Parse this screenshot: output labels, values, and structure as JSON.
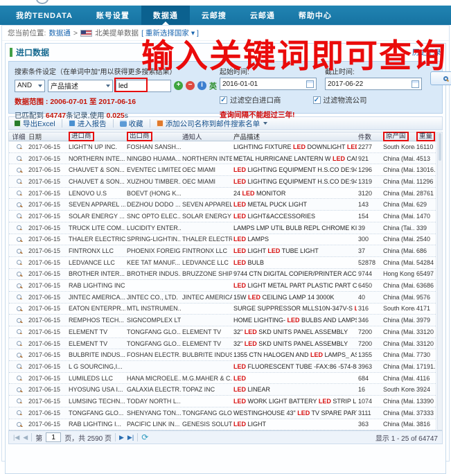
{
  "nav": {
    "tabs": [
      {
        "label": "我的TENDATA"
      },
      {
        "label": "账号设置"
      },
      {
        "label": "数据通"
      },
      {
        "label": "云邮搜"
      },
      {
        "label": "云邮通"
      },
      {
        "label": "帮助中心"
      }
    ],
    "active_index": 2
  },
  "breadcrumb": {
    "prefix": "您当前位置:",
    "link": "数据通",
    "sep": ">",
    "flag_icon": "us-flag",
    "title": "北美提单数据",
    "reselect": "[ 重新选择国家 ▾ ]"
  },
  "annotation": {
    "headline": "输入关键词即可查询"
  },
  "panel": {
    "title": "进口数据",
    "history_link": "历史记录"
  },
  "search": {
    "criteria_label": "搜索条件设定（在单词中加\"用以获得更多搜索结果）",
    "bool_op": "AND",
    "field_option": "产品描述",
    "keyword": "led",
    "lang_label": "英",
    "add_icon": "+",
    "remove_icon": "−",
    "info_icon": "i",
    "start_label": "起始时间:",
    "start_value": "2016-01-01",
    "end_label": "截止时间:",
    "end_value": "2017-06-22",
    "search_label": "搜索",
    "range_text": "数据范围 : 2006-07-01 至 2017-06-16",
    "matched_parts": [
      {
        "t": "已匹配到 ",
        "red": false
      },
      {
        "t": "64747",
        "red": true
      },
      {
        "t": "条记录,使用 ",
        "red": false
      },
      {
        "t": "0.025",
        "red": true
      },
      {
        "t": "s",
        "red": false
      }
    ],
    "filter1": "过滤空白进口商",
    "filter2": "过滤物流公司",
    "warn": "查询间隔不能超过三年!"
  },
  "toolbar": {
    "export_label": "导出Excel",
    "report_label": "进入报告",
    "favorite_label": "收藏",
    "addlist_label": "添加公司名称到邮件搜索名单"
  },
  "table": {
    "headers": [
      {
        "label": "详细",
        "boxed": false
      },
      {
        "label": "日期",
        "boxed": false
      },
      {
        "label": "进口商",
        "boxed": true
      },
      {
        "label": "出口商",
        "boxed": true
      },
      {
        "label": "通知人",
        "boxed": false
      },
      {
        "label": "产品描述",
        "boxed": false
      },
      {
        "label": "件数",
        "boxed": false
      },
      {
        "label": "原产国",
        "boxed": true
      },
      {
        "label": "重量",
        "boxed": true
      }
    ],
    "rows": [
      {
        "date": "2017-06-15",
        "importer": "LIGHT'N UP INC.",
        "exporter": "FOSHAN SANSH...",
        "notify": "",
        "desc": "LIGHTING FIXTURE LED DOWNLIGHT LED MULT...",
        "qty": "2277",
        "country": "South Korea",
        "weight": "16110"
      },
      {
        "date": "2017-06-15",
        "importer": "NORTHERN INTE...",
        "exporter": "NINGBO HUAMA...",
        "notify": "NORTHERN INTE...",
        "desc": "METAL HURRICANE LANTERN W LED CANDLE T...",
        "qty": "921",
        "country": "China (Mai...",
        "weight": "4513"
      },
      {
        "date": "2017-06-15",
        "importer": "CHAUVET & SON...",
        "exporter": "EVENTEC LIMITED",
        "notify": "OEC MIAMI",
        "desc": "LED LIGHTING EQUIPMENT H.S.CO DE:9405409...",
        "qty": "1296",
        "country": "China (Mai...",
        "weight": "13016..."
      },
      {
        "date": "2017-06-15",
        "importer": "CHAUVET & SON...",
        "exporter": "XUZHOU TIMBER...",
        "notify": "OEC MIAMI",
        "desc": "LED LIGHTING EQUIPMENT H.S.CO DE:9405409...",
        "qty": "1319",
        "country": "China (Mai...",
        "weight": "11296"
      },
      {
        "date": "2017-06-15",
        "importer": "LENOVO U.S",
        "exporter": "BOEVT (HONG K...",
        "notify": "",
        "desc": "24 LED MONITOR",
        "qty": "3120",
        "country": "China (Mai...",
        "weight": "28761"
      },
      {
        "date": "2017-06-15",
        "importer": "SEVEN APPAREL ...",
        "exporter": "DEZHOU DODO ...",
        "notify": "SEVEN APPAREL ...",
        "desc": "LED METAL PUCK LIGHT",
        "qty": "143",
        "country": "China (Mai...",
        "weight": "629"
      },
      {
        "date": "2017-06-15",
        "importer": "SOLAR ENERGY ...",
        "exporter": "SNC OPTO ELEC...",
        "notify": "SOLAR ENERGY ...",
        "desc": "LED LIGHT&ACCESSORIES",
        "qty": "154",
        "country": "China (Mai...",
        "weight": "1470"
      },
      {
        "date": "2017-06-15",
        "importer": "TRUCK LITE COM...",
        "exporter": "LUCIDITY ENTER...",
        "notify": "",
        "desc": "LAMPS LMP UTIL BULB REPL CHROME KIT LED A...",
        "qty": "39",
        "country": "China (Tai...",
        "weight": "339"
      },
      {
        "date": "2017-06-15",
        "importer": "THALER ELECTRIC",
        "exporter": "SPRING-LIGHTIN...",
        "notify": "THALER ELECTRIC",
        "desc": "LED LAMPS",
        "qty": "300",
        "country": "China (Mai...",
        "weight": "2540"
      },
      {
        "date": "2017-06-15",
        "importer": "FINTRONX LLC",
        "exporter": "PHOENIX FOREIG...",
        "notify": "FINTRONX LLC",
        "desc": "LED LIGHT LED TUBE LIGHT",
        "qty": "37",
        "country": "China (Mai...",
        "weight": "686"
      },
      {
        "date": "2017-06-15",
        "importer": "LEDVANCE LLC",
        "exporter": "KEE TAT MANUF...",
        "notify": "LEDVANCE LLC",
        "desc": "LED BULB",
        "qty": "52878",
        "country": "China (Mai...",
        "weight": "54284"
      },
      {
        "date": "2017-06-15",
        "importer": "BROTHER INTER...",
        "exporter": "BROTHER INDUS...",
        "notify": "BRUZZONE SHIP...",
        "desc": "9744 CTN DIGITAL COPIER/PRINTER ACC FOR L...",
        "qty": "9744",
        "country": "Hong Kong",
        "weight": "65497"
      },
      {
        "date": "2017-06-15",
        "importer": "RAB LIGHTING INC",
        "exporter": "",
        "notify": "",
        "desc": "LED LIGHT METAL PART PLASTIC PART CARTO...",
        "qty": "6450",
        "country": "China (Mai...",
        "weight": "63686"
      },
      {
        "date": "2017-06-15",
        "importer": "JINTEC AMERICA...",
        "exporter": "JINTEC CO., LTD.",
        "notify": "JINTEC AMERICA...",
        "desc": "15W LED CEILING LAMP 14 3000K",
        "qty": "40",
        "country": "China (Mai...",
        "weight": "9576"
      },
      {
        "date": "2017-06-15",
        "importer": "EATON ENTERPR...",
        "exporter": "MTL INSTRUMEN...",
        "notify": "",
        "desc": "SURGE SUPPRESSOR MLLS10N-347V-S LED LIGH...",
        "qty": "316",
        "country": "South Korea",
        "weight": "4171"
      },
      {
        "date": "2017-06-15",
        "importer": "REMPHOS TECH...",
        "exporter": "SIGNCOMPLEX LTD",
        "notify": "",
        "desc": "HOME LIGHTING- LED BULBS AND LAMPS HS CO...",
        "qty": "346",
        "country": "China (Mai...",
        "weight": "3979"
      },
      {
        "date": "2017-06-15",
        "importer": "ELEMENT TV",
        "exporter": "TONGFANG GLO...",
        "notify": "ELEMENT TV",
        "desc": "32\" LED SKD UNITS PANEL ASSEMBLY",
        "qty": "7200",
        "country": "China (Mai...",
        "weight": "33120"
      },
      {
        "date": "2017-06-15",
        "importer": "ELEMENT TV",
        "exporter": "TONGFANG GLO...",
        "notify": "ELEMENT TV",
        "desc": "32\" LED SKD UNITS PANEL ASSEMBLY",
        "qty": "7200",
        "country": "China (Mai...",
        "weight": "33120"
      },
      {
        "date": "2017-06-15",
        "importer": "BULBRITE INDUS...",
        "exporter": "FOSHAN ELECTR...",
        "notify": "BULBRITE INDUS...",
        "desc": "1355 CTN HALOGEN AND LED LAMPS_ AS PER P...",
        "qty": "1355",
        "country": "China (Mai...",
        "weight": "7730"
      },
      {
        "date": "2017-06-15",
        "importer": "L G SOURCING,I...",
        "exporter": "",
        "notify": "",
        "desc": "LED FLUORESCENT TUBE -FAX:86 -574-8884-56...",
        "qty": "3963",
        "country": "China (Mai...",
        "weight": "17191..."
      },
      {
        "date": "2017-06-15",
        "importer": "LUMILEDS LLC",
        "exporter": "HANA MICROELE...",
        "notify": "M.G.MAHER & C...",
        "desc": "LED",
        "qty": "684",
        "country": "China (Mai...",
        "weight": "4116"
      },
      {
        "date": "2017-06-15",
        "importer": "HYOSUNG USA I...",
        "exporter": "GALAXIA ELECTR...",
        "notify": "TOPAZ INC",
        "desc": "LED LINEAR",
        "qty": "16",
        "country": "South Korea",
        "weight": "3924"
      },
      {
        "date": "2017-06-15",
        "importer": "LUMSING TECHN...",
        "exporter": "TODAY NORTH L...",
        "notify": "",
        "desc": "LED WORK LIGHT BATTERY LED STRIP LIGHT",
        "qty": "1074",
        "country": "China (Mai...",
        "weight": "13390"
      },
      {
        "date": "2017-06-15",
        "importer": "TONGFANG GLO...",
        "exporter": "SHENYANG TON...",
        "notify": "TONGFANG GLO...",
        "desc": "WESTINGHOUSE 43\" LED TV SPARE PARTS FOR...",
        "qty": "3111",
        "country": "China (Mai...",
        "weight": "37333"
      },
      {
        "date": "2017-06-15",
        "importer": "RAB LIGHTING I...",
        "exporter": "PACIFIC LINK IN...",
        "notify": "GENESIS SOLUTI...",
        "desc": "LED LIGHT",
        "qty": "363",
        "country": "China (Mai...",
        "weight": "3816"
      }
    ]
  },
  "pagination": {
    "first_icon": "|◀",
    "prev_icon": "◀",
    "page_prefix": "第",
    "page_value": "1",
    "page_suffix": "页，共 2590 页",
    "next_icon": "▶",
    "last_icon": "▶|",
    "refresh_icon": "⟳",
    "total_text": "显示 1 - 25 of 64747"
  },
  "colors": {
    "navbar": "#1673a2",
    "navbar_active": "#0b618f",
    "annotation_red": "#ea0b0b",
    "led_highlight": "#d80f0f",
    "panel_green_bar": "#43a047",
    "search_panel_bg": "#d9e9f8"
  }
}
